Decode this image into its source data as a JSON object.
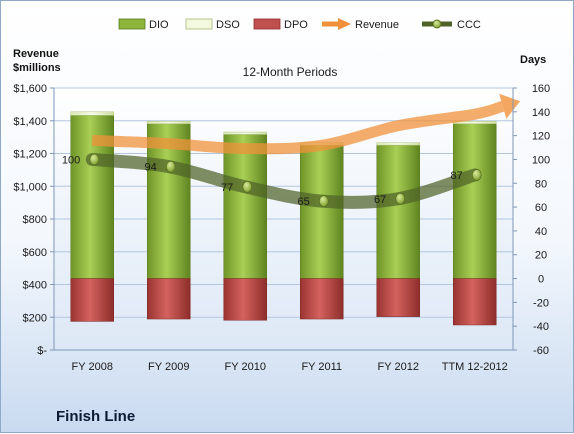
{
  "chart_data": {
    "type": "bar",
    "title": "12-Month Periods",
    "company": "Finish Line",
    "left_axis_label_line1": "Revenue",
    "left_axis_label_line2": "$millions",
    "right_axis_label": "Days",
    "categories": [
      "FY 2008",
      "FY 2009",
      "FY 2010",
      "FY 2011",
      "FY 2012",
      "TTM 12-2012"
    ],
    "left_ylim": [
      0,
      1600
    ],
    "left_ticks": [
      0,
      200,
      400,
      600,
      800,
      1000,
      1200,
      1400,
      1600
    ],
    "left_tick_labels": [
      "$-",
      "$200",
      "$400",
      "$600",
      "$800",
      "$1,000",
      "$1,200",
      "$1,400",
      "$1,600"
    ],
    "right_ylim": [
      -60,
      160
    ],
    "right_ticks": [
      -60,
      -40,
      -20,
      0,
      20,
      40,
      60,
      80,
      100,
      120,
      140,
      160
    ],
    "right_tick_labels": [
      "-60",
      "-40",
      "-20",
      "0",
      "20",
      "40",
      "60",
      "80",
      "100",
      "120",
      "140",
      "160"
    ],
    "grid": true,
    "legend_position": "top",
    "series": [
      {
        "name": "DIO",
        "kind": "bar",
        "axis": "right",
        "color": "#8db53e",
        "values": [
          137,
          130,
          121,
          112,
          112,
          130
        ]
      },
      {
        "name": "DSO",
        "kind": "bar",
        "axis": "right",
        "color": "#eef5d5",
        "values": [
          3,
          2,
          2,
          2,
          2,
          2
        ]
      },
      {
        "name": "DPO",
        "kind": "bar",
        "axis": "right",
        "color": "#c0504d",
        "values": [
          -36,
          -34,
          -35,
          -34,
          -32,
          -39
        ]
      },
      {
        "name": "Revenue",
        "kind": "arrow-line",
        "axis": "left",
        "color": "#f0913a",
        "values": [
          1280,
          1260,
          1230,
          1250,
          1370,
          1440
        ]
      },
      {
        "name": "CCC",
        "kind": "line",
        "axis": "right",
        "color": "#4f6228",
        "values": [
          100,
          94,
          77,
          65,
          67,
          87
        ],
        "labels": [
          "100",
          "94",
          "77",
          "65",
          "67",
          "87"
        ]
      }
    ]
  }
}
